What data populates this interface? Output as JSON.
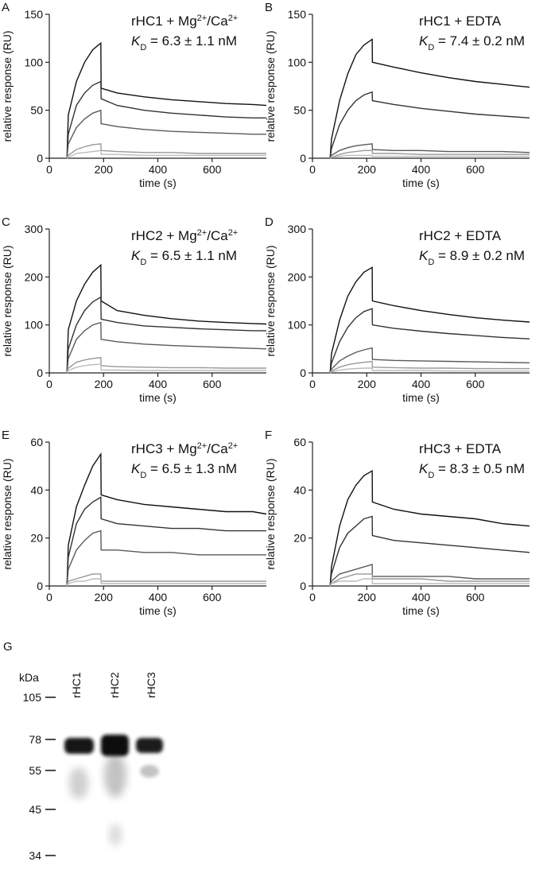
{
  "chart_data": [
    {
      "type": "line",
      "panel": "A",
      "title": [
        {
          "text": "rHC1 + Mg"
        },
        {
          "text": "2+",
          "sup": true
        },
        {
          "text": "/Ca"
        },
        {
          "text": "2+",
          "sup": true
        }
      ],
      "kd": [
        {
          "text": "K",
          "italic": true
        },
        {
          "text": "D",
          "sub": true
        },
        {
          "text": " = 6.3 ± 1.1 nM"
        }
      ],
      "x_label": "time (s)",
      "y_label": "relative response (RU)",
      "xlim": [
        0,
        800
      ],
      "xticks": [
        0,
        200,
        400,
        600
      ],
      "ylim": [
        0,
        150
      ],
      "yticks": [
        0,
        50,
        100,
        150
      ],
      "x": [
        65,
        70,
        100,
        130,
        160,
        190,
        191,
        250,
        350,
        450,
        550,
        650,
        750,
        800
      ],
      "series": [
        {
          "color": "#111111",
          "values": [
            0,
            45,
            80,
            100,
            113,
            120,
            73,
            68,
            64,
            61,
            59,
            57,
            56,
            55
          ]
        },
        {
          "color": "#333333",
          "values": [
            0,
            25,
            55,
            68,
            76,
            80,
            62,
            55,
            50,
            47,
            45,
            43,
            42,
            42
          ]
        },
        {
          "color": "#5a5a5a",
          "values": [
            0,
            15,
            32,
            41,
            47,
            50,
            36,
            33,
            30,
            28,
            27,
            26,
            25,
            25
          ]
        },
        {
          "color": "#999999",
          "values": [
            0,
            3,
            9,
            12,
            14,
            15,
            8,
            7,
            6,
            6,
            5,
            5,
            5,
            5
          ]
        },
        {
          "color": "#bbbbbb",
          "values": [
            0,
            1,
            5,
            6,
            7,
            8,
            4,
            4,
            3,
            3,
            3,
            3,
            3,
            3
          ]
        }
      ]
    },
    {
      "type": "line",
      "panel": "B",
      "title": [
        {
          "text": "rHC1 + EDTA"
        }
      ],
      "kd": [
        {
          "text": "K",
          "italic": true
        },
        {
          "text": "D",
          "sub": true
        },
        {
          "text": " = 7.4 ± 0.2 nM"
        }
      ],
      "x_label": "time (s)",
      "y_label": "relative response (RU)",
      "xlim": [
        0,
        800
      ],
      "xticks": [
        0,
        200,
        400,
        600
      ],
      "ylim": [
        0,
        150
      ],
      "yticks": [
        0,
        50,
        100,
        150
      ],
      "x": [
        65,
        70,
        100,
        130,
        160,
        190,
        220,
        221,
        300,
        400,
        500,
        600,
        700,
        800
      ],
      "series": [
        {
          "color": "#111111",
          "values": [
            0,
            20,
            60,
            88,
            108,
            118,
            124,
            100,
            95,
            89,
            84,
            80,
            77,
            74
          ]
        },
        {
          "color": "#333333",
          "values": [
            0,
            10,
            35,
            50,
            60,
            66,
            69,
            60,
            56,
            52,
            49,
            46,
            44,
            42
          ]
        },
        {
          "color": "#5a5a5a",
          "values": [
            0,
            3,
            8,
            11,
            13,
            14,
            15,
            9,
            8,
            8,
            7,
            7,
            7,
            6
          ]
        },
        {
          "color": "#999999",
          "values": [
            0,
            1,
            4,
            6,
            7,
            8,
            8,
            5,
            5,
            4,
            4,
            4,
            4,
            4
          ]
        },
        {
          "color": "#bbbbbb",
          "values": [
            0,
            1,
            2,
            3,
            3,
            3,
            3,
            2,
            2,
            2,
            2,
            2,
            2,
            2
          ]
        }
      ]
    },
    {
      "type": "line",
      "panel": "C",
      "title": [
        {
          "text": "rHC2 + Mg"
        },
        {
          "text": "2+",
          "sup": true
        },
        {
          "text": "/Ca"
        },
        {
          "text": "2+",
          "sup": true
        }
      ],
      "kd": [
        {
          "text": "K",
          "italic": true
        },
        {
          "text": "D",
          "sub": true
        },
        {
          "text": " = 6.5 ± 1.1 nM"
        }
      ],
      "x_label": "time (s)",
      "y_label": "relative response (RU)",
      "xlim": [
        0,
        800
      ],
      "xticks": [
        0,
        200,
        400,
        600
      ],
      "ylim": [
        0,
        300
      ],
      "yticks": [
        0,
        100,
        200,
        300
      ],
      "x": [
        65,
        70,
        100,
        130,
        160,
        190,
        191,
        250,
        350,
        450,
        550,
        650,
        750,
        800
      ],
      "series": [
        {
          "color": "#111111",
          "values": [
            0,
            90,
            150,
            185,
            210,
            225,
            150,
            130,
            120,
            113,
            108,
            105,
            103,
            102
          ]
        },
        {
          "color": "#333333",
          "values": [
            0,
            50,
            100,
            130,
            148,
            158,
            112,
            105,
            98,
            95,
            92,
            90,
            88,
            88
          ]
        },
        {
          "color": "#5a5a5a",
          "values": [
            0,
            30,
            70,
            88,
            100,
            105,
            70,
            65,
            60,
            57,
            55,
            53,
            51,
            50
          ]
        },
        {
          "color": "#999999",
          "values": [
            0,
            10,
            22,
            27,
            30,
            32,
            15,
            13,
            12,
            11,
            11,
            10,
            10,
            10
          ]
        },
        {
          "color": "#bbbbbb",
          "values": [
            0,
            5,
            12,
            15,
            17,
            18,
            6,
            6,
            5,
            5,
            5,
            5,
            5,
            5
          ]
        }
      ]
    },
    {
      "type": "line",
      "panel": "D",
      "title": [
        {
          "text": "rHC2 + EDTA"
        }
      ],
      "kd": [
        {
          "text": "K",
          "italic": true
        },
        {
          "text": "D",
          "sub": true
        },
        {
          "text": " = 8.9 ± 0.2 nM"
        }
      ],
      "x_label": "time (s)",
      "y_label": "relative response (RU)",
      "xlim": [
        0,
        800
      ],
      "xticks": [
        0,
        200,
        400,
        600
      ],
      "ylim": [
        0,
        300
      ],
      "yticks": [
        0,
        100,
        200,
        300
      ],
      "x": [
        65,
        70,
        100,
        130,
        160,
        190,
        220,
        221,
        300,
        400,
        500,
        600,
        700,
        800
      ],
      "series": [
        {
          "color": "#111111",
          "values": [
            0,
            40,
            110,
            160,
            190,
            210,
            220,
            150,
            140,
            130,
            122,
            115,
            110,
            106
          ]
        },
        {
          "color": "#333333",
          "values": [
            0,
            20,
            65,
            95,
            115,
            128,
            134,
            100,
            93,
            87,
            82,
            78,
            74,
            71
          ]
        },
        {
          "color": "#5a5a5a",
          "values": [
            0,
            8,
            25,
            35,
            43,
            48,
            52,
            28,
            26,
            25,
            24,
            23,
            22,
            21
          ]
        },
        {
          "color": "#999999",
          "values": [
            0,
            4,
            12,
            17,
            20,
            22,
            24,
            12,
            11,
            10,
            10,
            9,
            9,
            9
          ]
        },
        {
          "color": "#bbbbbb",
          "values": [
            0,
            2,
            6,
            8,
            9,
            10,
            10,
            5,
            5,
            5,
            4,
            4,
            4,
            4
          ]
        }
      ]
    },
    {
      "type": "line",
      "panel": "E",
      "title": [
        {
          "text": "rHC3 + Mg"
        },
        {
          "text": "2+",
          "sup": true
        },
        {
          "text": "/Ca"
        },
        {
          "text": "2+",
          "sup": true
        }
      ],
      "kd": [
        {
          "text": "K",
          "italic": true
        },
        {
          "text": "D",
          "sub": true
        },
        {
          "text": " = 6.5 ± 1.3 nM"
        }
      ],
      "x_label": "time (s)",
      "y_label": "relative response (RU)",
      "xlim": [
        0,
        800
      ],
      "xticks": [
        0,
        200,
        400,
        600
      ],
      "ylim": [
        0,
        60
      ],
      "yticks": [
        0,
        20,
        40,
        60
      ],
      "x": [
        65,
        70,
        100,
        130,
        160,
        190,
        191,
        250,
        350,
        450,
        550,
        650,
        750,
        800
      ],
      "series": [
        {
          "color": "#111111",
          "values": [
            0,
            17,
            33,
            42,
            50,
            55,
            38,
            36,
            34,
            33,
            32,
            31,
            31,
            30
          ]
        },
        {
          "color": "#333333",
          "values": [
            0,
            12,
            26,
            32,
            35,
            37,
            28,
            26,
            25,
            24,
            24,
            23,
            23,
            23
          ]
        },
        {
          "color": "#5a5a5a",
          "values": [
            0,
            7,
            15,
            19,
            22,
            23,
            15,
            15,
            14,
            14,
            13,
            13,
            13,
            13
          ]
        },
        {
          "color": "#999999",
          "values": [
            0,
            2,
            3,
            4,
            5,
            5,
            2,
            2,
            2,
            2,
            2,
            2,
            2,
            2
          ]
        },
        {
          "color": "#bbbbbb",
          "values": [
            0,
            1,
            2,
            2,
            3,
            3,
            1,
            1,
            1,
            1,
            1,
            1,
            1,
            1
          ]
        }
      ]
    },
    {
      "type": "line",
      "panel": "F",
      "title": [
        {
          "text": "rHC3 + EDTA"
        }
      ],
      "kd": [
        {
          "text": "K",
          "italic": true
        },
        {
          "text": "D",
          "sub": true
        },
        {
          "text": " = 8.3 ± 0.5 nM"
        }
      ],
      "x_label": "time (s)",
      "y_label": "relative response (RU)",
      "xlim": [
        0,
        800
      ],
      "xticks": [
        0,
        200,
        400,
        600
      ],
      "ylim": [
        0,
        60
      ],
      "yticks": [
        0,
        20,
        40,
        60
      ],
      "x": [
        65,
        70,
        100,
        130,
        160,
        190,
        220,
        221,
        300,
        400,
        500,
        600,
        700,
        800
      ],
      "series": [
        {
          "color": "#111111",
          "values": [
            0,
            8,
            25,
            36,
            42,
            46,
            48,
            35,
            32,
            30,
            29,
            28,
            26,
            25
          ]
        },
        {
          "color": "#333333",
          "values": [
            0,
            5,
            16,
            22,
            25,
            28,
            29,
            21,
            19,
            18,
            17,
            16,
            15,
            14
          ]
        },
        {
          "color": "#5a5a5a",
          "values": [
            0,
            2,
            5,
            6,
            7,
            8,
            9,
            4,
            4,
            4,
            4,
            3,
            3,
            3
          ]
        },
        {
          "color": "#999999",
          "values": [
            0,
            1,
            3,
            4,
            5,
            5,
            5,
            3,
            3,
            3,
            2,
            2,
            2,
            2
          ]
        },
        {
          "color": "#bbbbbb",
          "values": [
            0,
            1,
            2,
            2,
            2,
            3,
            3,
            1,
            1,
            1,
            1,
            1,
            1,
            1
          ]
        }
      ]
    }
  ],
  "gel": {
    "panel": "G",
    "lanes": [
      "rHC1",
      "rHC2",
      "rHC3"
    ],
    "unit": "kDa",
    "markers": [
      "105",
      "78",
      "55",
      "45",
      "34"
    ]
  }
}
